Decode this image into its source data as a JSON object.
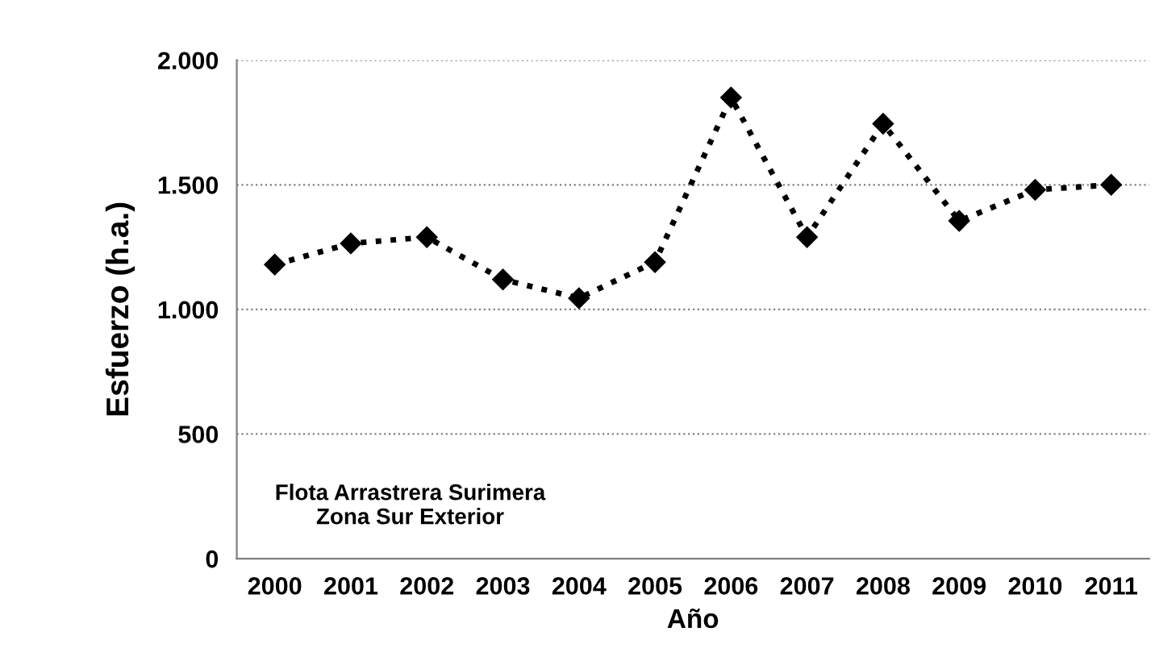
{
  "chart_data": {
    "type": "line",
    "xlabel": "Año",
    "ylabel": "Esfuerzo (h.a.)",
    "categories": [
      "2000",
      "2001",
      "2002",
      "2003",
      "2004",
      "2005",
      "2006",
      "2007",
      "2008",
      "2009",
      "2010",
      "2011"
    ],
    "series": [
      {
        "color": "#000000",
        "values": [
          1180,
          1265,
          1290,
          1120,
          1045,
          1190,
          1850,
          1290,
          1745,
          1355,
          1480,
          1500
        ]
      }
    ],
    "ylim": [
      0,
      2000
    ],
    "yticks": [
      0,
      {
        "value": 500,
        "label": "500"
      },
      {
        "value": 1000,
        "label": "1.000"
      },
      {
        "value": 1500,
        "label": "1.500"
      },
      {
        "value": 2000,
        "label": "2.000"
      }
    ],
    "grid": "y",
    "marker": "diamond",
    "line_style": "dotted",
    "legend": false,
    "annotations": [
      "Flota Arrastrera Surimera\nZona Sur Exterior"
    ]
  }
}
